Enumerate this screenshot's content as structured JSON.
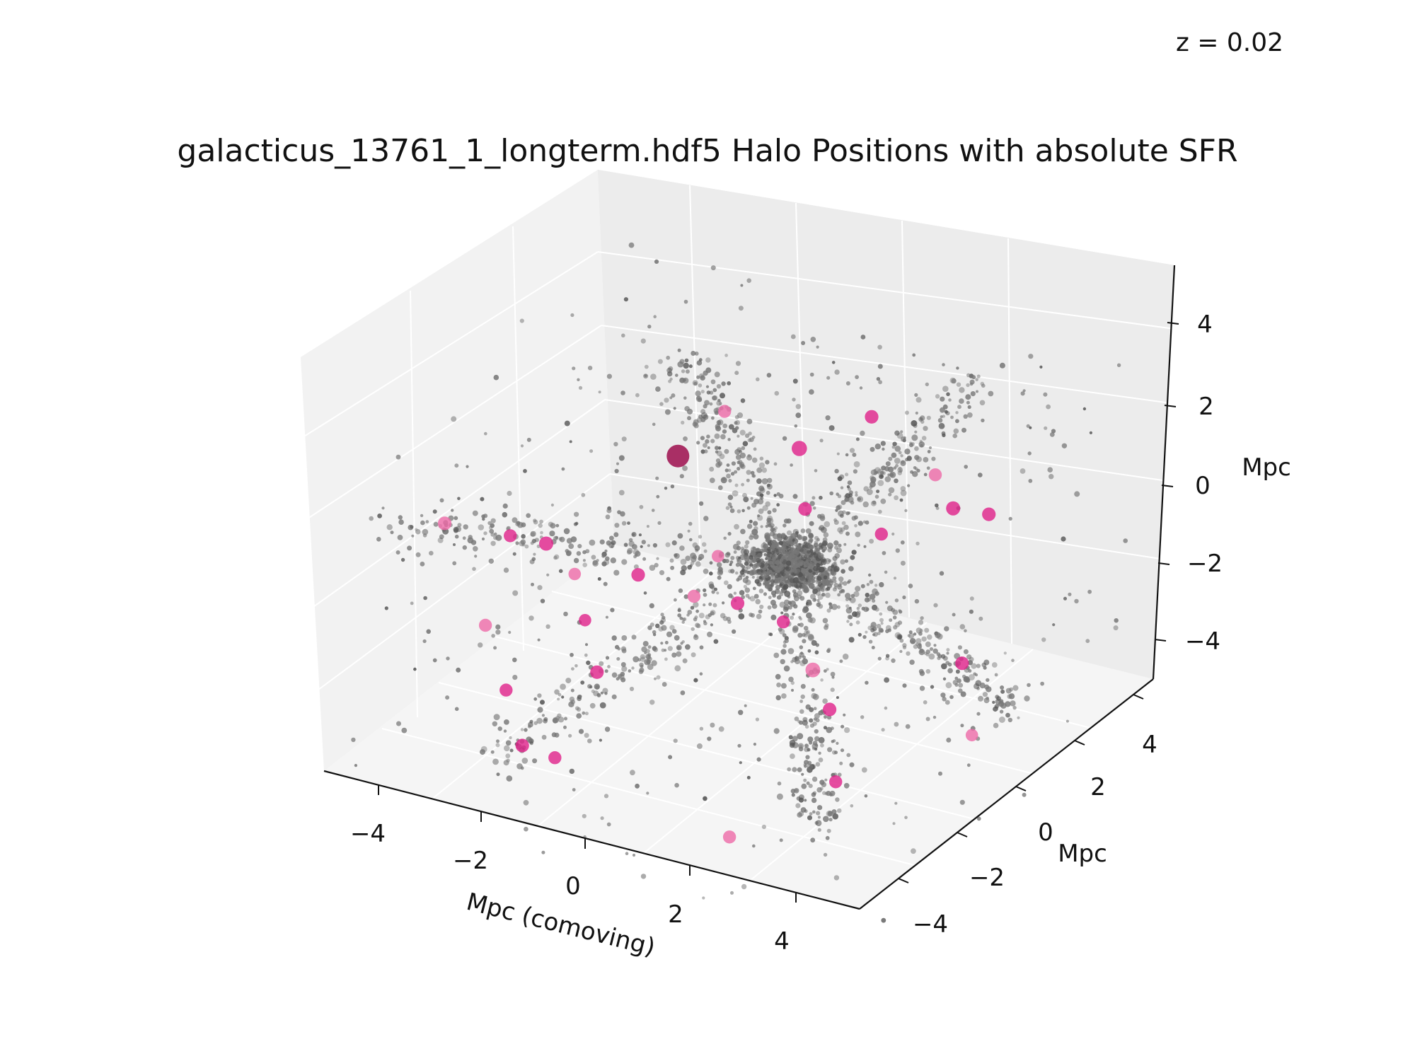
{
  "chart_data": {
    "type": "scatter",
    "projection": "3d",
    "title": "galacticus_13761_1_longterm.hdf5 Halo Positions with absolute SFR",
    "annotation": "z = 0.02",
    "xlabel": "Mpc (comoving)",
    "ylabel": "Mpc",
    "zlabel": "Mpc",
    "xlim": [
      -5,
      5
    ],
    "ylim": [
      -5,
      5
    ],
    "zlim": [
      -5,
      5
    ],
    "x_ticks": [
      "−4",
      "−2",
      "0",
      "2",
      "4"
    ],
    "y_ticks": [
      "−4",
      "−2",
      "0",
      "2",
      "4"
    ],
    "z_ticks": [
      "−4",
      "−2",
      "0",
      "2",
      "4"
    ],
    "grid": true,
    "colors": {
      "halo_grey": "#777777",
      "halo_dark": "#555555",
      "sfr_pink": "#e0218a",
      "sfr_light": "#ee6aa7",
      "sfr_max": "#990044"
    },
    "series": [
      {
        "points": [
          [
            -3.9,
            -3.0,
            1.6,
            0.9
          ],
          [
            -3.1,
            -2.2,
            1.1,
            0.8
          ],
          [
            -2.8,
            -1.5,
            0.6,
            1.0
          ],
          [
            -2.2,
            -1.6,
            0.1,
            0.7
          ],
          [
            -1.5,
            -0.7,
            -0.2,
            0.9
          ],
          [
            -1.0,
            -0.4,
            2.8,
            2.5
          ],
          [
            -3.5,
            -2.2,
            -1.3,
            0.8
          ],
          [
            -2.6,
            -3.1,
            -2.1,
            0.8
          ],
          [
            -1.3,
            -2.4,
            -1.6,
            0.9
          ],
          [
            -0.8,
            0.8,
            3.3,
            0.8
          ],
          [
            0.5,
            1.0,
            2.7,
            1.2
          ],
          [
            1.5,
            1.6,
            3.5,
            0.9
          ],
          [
            2.4,
            2.2,
            2.0,
            0.8
          ],
          [
            2.7,
            2.3,
            1.2,
            1.0
          ],
          [
            3.1,
            2.8,
            0.9,
            0.9
          ],
          [
            -0.4,
            -0.8,
            -0.3,
            0.8
          ],
          [
            0.2,
            -0.4,
            -0.5,
            0.9
          ],
          [
            0.9,
            -0.1,
            -0.9,
            0.8
          ],
          [
            1.9,
            -0.9,
            -1.3,
            1.1
          ],
          [
            2.5,
            -1.4,
            -1.8,
            0.9
          ],
          [
            3.4,
            -2.8,
            -2.5,
            0.8
          ],
          [
            4.2,
            0.4,
            -2.9,
            0.7
          ],
          [
            -1.6,
            -3.2,
            -3.4,
            0.8
          ],
          [
            -2.0,
            -3.6,
            -3.0,
            0.9
          ],
          [
            2.0,
            -3.8,
            -3.8,
            0.8
          ],
          [
            0.7,
            0.9,
            1.3,
            0.9
          ],
          [
            1.6,
            1.9,
            0.4,
            0.8
          ],
          [
            -0.3,
            -0.2,
            0.4,
            0.7
          ],
          [
            3.6,
            1.1,
            -1.7,
            0.9
          ],
          [
            -2.4,
            -0.8,
            -1.6,
            0.7
          ]
        ]
      }
    ]
  }
}
